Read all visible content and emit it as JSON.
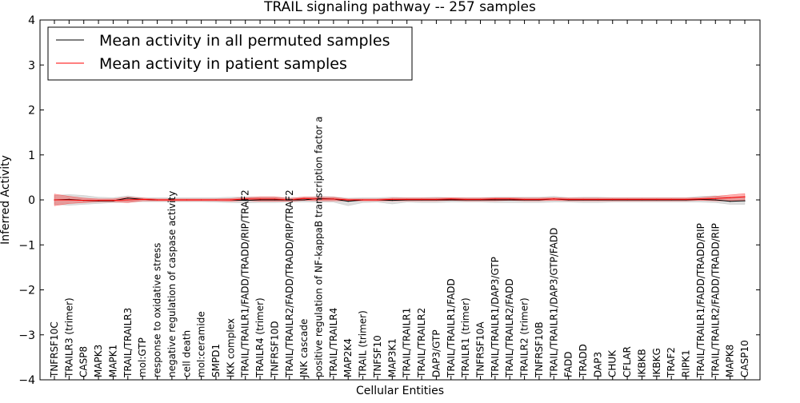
{
  "chart_data": {
    "type": "line",
    "title": "TRAIL signaling pathway -- 257 samples",
    "xlabel": "Cellular Entities",
    "ylabel": "Inferred Activity",
    "ylim": [
      -4,
      4
    ],
    "yticks": [
      -4,
      -3,
      -2,
      -1,
      0,
      1,
      2,
      3,
      4
    ],
    "grid": false,
    "legend_position": "top-left",
    "categories": [
      "TNFRSF10C",
      "TRAILR3 (trimer)",
      "CASP8",
      "MAPK3",
      "MAPK1",
      "TRAIL/TRAILR3",
      "mol:GTP",
      "response to oxidative stress",
      "negative regulation of caspase activity",
      "cell death",
      "mol:ceramide",
      "SMPD1",
      "IKK complex",
      "TRAIL/TRAILR1/FADD/TRADD/RIP/TRAF2",
      "TRAILR4 (trimer)",
      "TNFRSF10D",
      "TRAIL/TRAILR2/FADD/TRADD/RIP/TRAF2",
      "JNK cascade",
      "positive regulation of NF-kappaB transcription factor a",
      "TRAIL/TRAILR4",
      "MAP2K4",
      "TRAIL (trimer)",
      "TNFSF10",
      "MAP3K1",
      "TRAIL/TRAILR1",
      "TRAIL/TRAILR2",
      "DAP3/GTP",
      "TRAIL/TRAILR1/FADD",
      "TRAILR1 (trimer)",
      "TNFRSF10A",
      "TRAIL/TRAILR1/DAP3/GTP",
      "TRAIL/TRAILR2/FADD",
      "TRAILR2 (trimer)",
      "TNFRSF10B",
      "TRAIL/TRAILR1/DAP3/GTP/FADD",
      "FADD",
      "TRADD",
      "DAP3",
      "CHUK",
      "CFLAR",
      "IKBKB",
      "IKBKG",
      "TRAF2",
      "RIPK1",
      "TRAIL/TRAILR1/FADD/TRADD/RIP",
      "TRAIL/TRAILR2/FADD/TRADD/RIP",
      "MAPK8",
      "CASP10"
    ],
    "series": [
      {
        "name": "Mean activity in all permuted samples",
        "color": "#000000",
        "band_color": "#aaaaaa",
        "values": [
          0.0,
          0.01,
          -0.01,
          -0.02,
          -0.02,
          0.04,
          0.01,
          0.0,
          0.0,
          0.0,
          0.0,
          0.0,
          0.0,
          -0.01,
          0.0,
          0.0,
          0.0,
          0.0,
          0.03,
          0.02,
          -0.03,
          0.0,
          0.0,
          -0.01,
          0.0,
          0.0,
          0.0,
          0.0,
          0.0,
          0.0,
          0.0,
          0.0,
          0.0,
          0.0,
          0.02,
          0.0,
          0.0,
          0.0,
          0.0,
          0.0,
          0.0,
          0.0,
          0.0,
          0.0,
          0.01,
          0.0,
          -0.03,
          -0.02
        ],
        "band_lower": [
          -0.1,
          -0.12,
          -0.1,
          -0.08,
          -0.06,
          -0.05,
          -0.04,
          -0.04,
          -0.04,
          -0.04,
          -0.04,
          -0.05,
          -0.06,
          -0.07,
          -0.06,
          -0.06,
          -0.05,
          -0.05,
          -0.05,
          -0.05,
          -0.13,
          -0.06,
          -0.05,
          -0.09,
          -0.05,
          -0.06,
          -0.06,
          -0.05,
          -0.05,
          -0.05,
          -0.06,
          -0.06,
          -0.06,
          -0.06,
          -0.05,
          -0.05,
          -0.06,
          -0.06,
          -0.05,
          -0.05,
          -0.05,
          -0.05,
          -0.05,
          -0.05,
          -0.05,
          -0.06,
          -0.1,
          -0.1
        ],
        "band_upper": [
          0.1,
          0.12,
          0.1,
          0.06,
          0.05,
          0.09,
          0.05,
          0.05,
          0.05,
          0.05,
          0.05,
          0.05,
          0.06,
          0.07,
          0.06,
          0.06,
          0.05,
          0.05,
          0.08,
          0.07,
          0.04,
          0.05,
          0.05,
          0.06,
          0.05,
          0.05,
          0.06,
          0.05,
          0.05,
          0.05,
          0.06,
          0.06,
          0.06,
          0.06,
          0.08,
          0.05,
          0.06,
          0.06,
          0.05,
          0.05,
          0.05,
          0.05,
          0.05,
          0.05,
          0.08,
          0.09,
          0.06,
          0.08
        ]
      },
      {
        "name": "Mean activity in patient samples",
        "color": "#ff0000",
        "band_color": "#ff0000",
        "values": [
          0.0,
          0.0,
          -0.01,
          -0.01,
          -0.01,
          0.0,
          0.01,
          0.0,
          0.0,
          0.0,
          0.0,
          0.0,
          0.0,
          0.02,
          0.02,
          0.02,
          0.0,
          0.03,
          0.02,
          0.02,
          0.0,
          0.0,
          0.0,
          0.01,
          0.01,
          0.01,
          0.01,
          0.02,
          0.01,
          0.01,
          0.02,
          0.02,
          0.01,
          0.01,
          0.02,
          0.01,
          0.01,
          0.01,
          0.01,
          0.01,
          0.01,
          0.01,
          0.01,
          0.01,
          0.02,
          0.03,
          0.05,
          0.07
        ],
        "band_lower": [
          -0.13,
          -0.08,
          -0.06,
          -0.04,
          -0.04,
          -0.06,
          -0.02,
          -0.02,
          -0.02,
          -0.02,
          -0.02,
          -0.02,
          -0.03,
          -0.01,
          -0.03,
          -0.03,
          -0.03,
          -0.01,
          -0.02,
          -0.02,
          -0.02,
          -0.02,
          -0.02,
          -0.02,
          -0.02,
          -0.02,
          -0.02,
          -0.01,
          -0.02,
          -0.02,
          -0.02,
          -0.01,
          -0.02,
          -0.02,
          -0.01,
          -0.02,
          -0.02,
          -0.02,
          -0.02,
          -0.02,
          -0.02,
          -0.02,
          -0.02,
          -0.02,
          -0.01,
          -0.02,
          -0.02,
          -0.02
        ],
        "band_upper": [
          0.13,
          0.08,
          0.04,
          0.02,
          0.02,
          0.06,
          0.04,
          0.02,
          0.02,
          0.02,
          0.02,
          0.02,
          0.03,
          0.05,
          0.07,
          0.07,
          0.03,
          0.07,
          0.06,
          0.06,
          0.02,
          0.02,
          0.02,
          0.04,
          0.04,
          0.04,
          0.04,
          0.05,
          0.04,
          0.04,
          0.05,
          0.05,
          0.04,
          0.04,
          0.05,
          0.04,
          0.04,
          0.04,
          0.04,
          0.04,
          0.04,
          0.04,
          0.04,
          0.04,
          0.05,
          0.08,
          0.11,
          0.14
        ]
      }
    ]
  }
}
